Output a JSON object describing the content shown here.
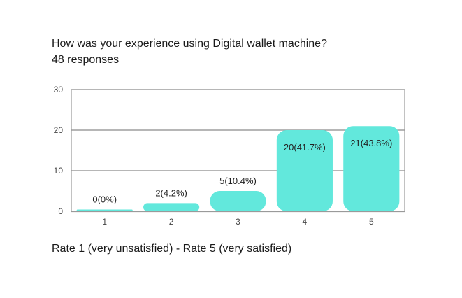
{
  "title": "How was your experience using Digital wallet machine?",
  "subtitle": "48 responses",
  "footnote": "Rate 1 (very unsatisfied) - Rate 5 (very satisfied)",
  "colors": {
    "bar": "#62e8dc",
    "axis": "#9a9a9a",
    "grid": "#8a8a8a"
  },
  "chart_data": {
    "type": "bar",
    "title": "How was your experience using Digital wallet machine?",
    "categories": [
      "1",
      "2",
      "3",
      "4",
      "5"
    ],
    "values": [
      0,
      2,
      5,
      20,
      21
    ],
    "data_labels": [
      "0(0%)",
      "2(4.2%)",
      "5(10.4%)",
      "20(41.7%)",
      "21(43.8%)"
    ],
    "yticks": [
      "0",
      "10",
      "20",
      "30"
    ],
    "ylim": [
      0,
      30
    ],
    "grid": true,
    "legend": "none"
  }
}
